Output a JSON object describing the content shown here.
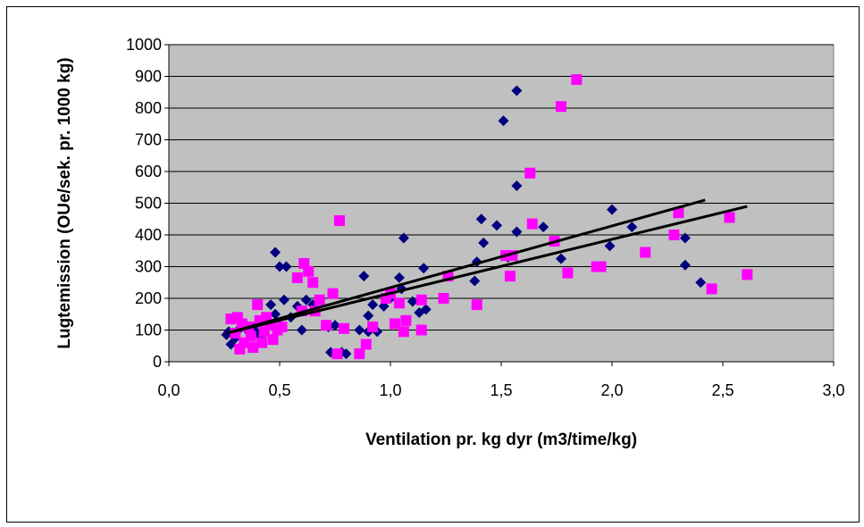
{
  "chart_data": {
    "type": "scatter",
    "title": "",
    "xlabel": "Ventilation pr. kg dyr (m3/time/kg)",
    "ylabel": "Lugtemission (OUe/sek. pr. 1000 kg)",
    "xlim": [
      0,
      3
    ],
    "ylim": [
      0,
      1000
    ],
    "x_ticks": [
      "0,0",
      "0,5",
      "1,0",
      "1,5",
      "2,0",
      "2,5",
      "3,0"
    ],
    "y_ticks": [
      "0",
      "100",
      "200",
      "300",
      "400",
      "500",
      "600",
      "700",
      "800",
      "900",
      "1000"
    ],
    "grid": "horizontal",
    "plot_background": "#c0c0c0",
    "legend": "none",
    "series": [
      {
        "marker": "diamond",
        "color": "#000080",
        "points": [
          [
            0.26,
            85
          ],
          [
            0.27,
            95
          ],
          [
            0.28,
            55
          ],
          [
            0.3,
            75
          ],
          [
            0.32,
            105
          ],
          [
            0.34,
            120
          ],
          [
            0.36,
            95
          ],
          [
            0.38,
            110
          ],
          [
            0.4,
            90
          ],
          [
            0.42,
            70
          ],
          [
            0.45,
            120
          ],
          [
            0.46,
            180
          ],
          [
            0.48,
            150
          ],
          [
            0.48,
            345
          ],
          [
            0.5,
            300
          ],
          [
            0.52,
            195
          ],
          [
            0.53,
            300
          ],
          [
            0.55,
            140
          ],
          [
            0.58,
            175
          ],
          [
            0.6,
            100
          ],
          [
            0.62,
            195
          ],
          [
            0.65,
            180
          ],
          [
            0.72,
            110
          ],
          [
            0.73,
            30
          ],
          [
            0.75,
            115
          ],
          [
            0.78,
            30
          ],
          [
            0.8,
            25
          ],
          [
            0.86,
            100
          ],
          [
            0.88,
            270
          ],
          [
            0.9,
            95
          ],
          [
            0.9,
            145
          ],
          [
            0.92,
            180
          ],
          [
            0.94,
            95
          ],
          [
            0.97,
            175
          ],
          [
            1.0,
            200
          ],
          [
            1.04,
            265
          ],
          [
            1.05,
            230
          ],
          [
            1.06,
            390
          ],
          [
            1.1,
            190
          ],
          [
            1.13,
            155
          ],
          [
            1.15,
            295
          ],
          [
            1.16,
            165
          ],
          [
            1.38,
            255
          ],
          [
            1.39,
            315
          ],
          [
            1.41,
            450
          ],
          [
            1.42,
            375
          ],
          [
            1.48,
            430
          ],
          [
            1.51,
            760
          ],
          [
            1.53,
            330
          ],
          [
            1.57,
            855
          ],
          [
            1.57,
            555
          ],
          [
            1.57,
            410
          ],
          [
            1.69,
            425
          ],
          [
            1.77,
            325
          ],
          [
            1.99,
            365
          ],
          [
            2.0,
            480
          ],
          [
            2.09,
            425
          ],
          [
            2.33,
            390
          ],
          [
            2.33,
            305
          ],
          [
            2.4,
            250
          ]
        ]
      },
      {
        "marker": "square",
        "color": "#ff00ff",
        "points": [
          [
            0.28,
            135
          ],
          [
            0.3,
            90
          ],
          [
            0.31,
            140
          ],
          [
            0.32,
            40
          ],
          [
            0.33,
            120
          ],
          [
            0.34,
            60
          ],
          [
            0.36,
            110
          ],
          [
            0.37,
            80
          ],
          [
            0.38,
            45
          ],
          [
            0.4,
            180
          ],
          [
            0.41,
            130
          ],
          [
            0.42,
            60
          ],
          [
            0.43,
            95
          ],
          [
            0.44,
            140
          ],
          [
            0.46,
            115
          ],
          [
            0.47,
            70
          ],
          [
            0.49,
            100
          ],
          [
            0.51,
            110
          ],
          [
            0.58,
            265
          ],
          [
            0.6,
            160
          ],
          [
            0.61,
            310
          ],
          [
            0.63,
            285
          ],
          [
            0.65,
            250
          ],
          [
            0.66,
            160
          ],
          [
            0.68,
            195
          ],
          [
            0.71,
            115
          ],
          [
            0.74,
            215
          ],
          [
            0.76,
            25
          ],
          [
            0.77,
            445
          ],
          [
            0.79,
            105
          ],
          [
            0.86,
            25
          ],
          [
            0.89,
            55
          ],
          [
            0.92,
            110
          ],
          [
            0.98,
            200
          ],
          [
            1.0,
            215
          ],
          [
            1.02,
            120
          ],
          [
            1.04,
            185
          ],
          [
            1.06,
            95
          ],
          [
            1.07,
            130
          ],
          [
            1.14,
            100
          ],
          [
            1.14,
            195
          ],
          [
            1.24,
            200
          ],
          [
            1.26,
            270
          ],
          [
            1.39,
            180
          ],
          [
            1.52,
            335
          ],
          [
            1.54,
            270
          ],
          [
            1.55,
            335
          ],
          [
            1.63,
            595
          ],
          [
            1.64,
            435
          ],
          [
            1.74,
            380
          ],
          [
            1.77,
            805
          ],
          [
            1.8,
            280
          ],
          [
            1.84,
            890
          ],
          [
            1.93,
            300
          ],
          [
            1.95,
            300
          ],
          [
            2.15,
            345
          ],
          [
            2.28,
            400
          ],
          [
            2.3,
            470
          ],
          [
            2.45,
            230
          ],
          [
            2.53,
            455
          ],
          [
            2.61,
            275
          ]
        ]
      }
    ],
    "trendlines": [
      {
        "color": "#000000",
        "x": [
          0.26,
          2.42
        ],
        "y": [
          90,
          510
        ]
      },
      {
        "color": "#000000",
        "x": [
          0.26,
          2.61
        ],
        "y": [
          90,
          490
        ]
      }
    ]
  }
}
